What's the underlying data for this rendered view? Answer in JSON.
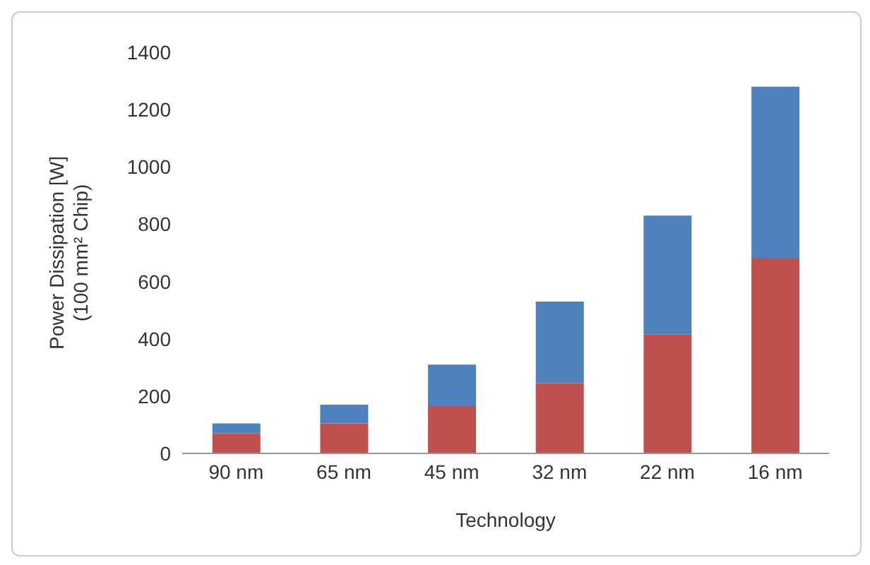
{
  "chart_data": {
    "type": "bar",
    "stacked": true,
    "xlabel": "Technology",
    "ylabel": "Power Dissipation [W]\n(100 mm² Chip)",
    "categories": [
      "90 nm",
      "65 nm",
      "45 nm",
      "32 nm",
      "22 nm",
      "16 nm"
    ],
    "series": [
      {
        "color": "#c0504d",
        "values": [
          70,
          105,
          165,
          245,
          415,
          680
        ]
      },
      {
        "color": "#4f81bd",
        "values": [
          35,
          65,
          145,
          285,
          415,
          600
        ]
      }
    ],
    "ylim": [
      0,
      1400
    ],
    "yticks": [
      0,
      200,
      400,
      600,
      800,
      1000,
      1200,
      1400
    ],
    "grid": false,
    "legend": false
  }
}
